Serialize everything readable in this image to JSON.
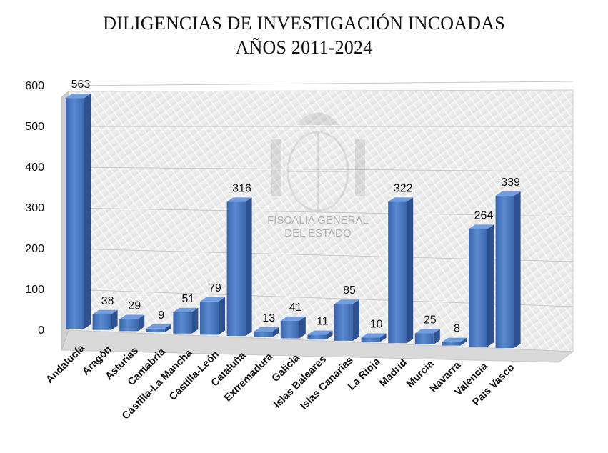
{
  "chart_data": {
    "type": "bar",
    "title": "DILIGENCIAS DE INVESTIGACIÓN INCOADAS",
    "subtitle": "AÑOS 2011-2024",
    "xlabel": "",
    "ylabel": "",
    "ylim": [
      0,
      600
    ],
    "yticks": [
      "0",
      "100",
      "200",
      "300",
      "400",
      "500",
      "600"
    ],
    "grid": true,
    "legend": "none",
    "three_d": true,
    "bar_color": "#4a78c0",
    "categories": [
      "Andalucía",
      "Aragón",
      "Asturias",
      "Cantabria",
      "Castilla-La Mancha",
      "Castilla-León",
      "Cataluña",
      "Extremadura",
      "Galicia",
      "Islas Baleares",
      "Islas Canarias",
      "La Rioja",
      "Madrid",
      "Murcia",
      "Navarra",
      "Valencia",
      "País Vasco"
    ],
    "values": [
      563,
      38,
      29,
      9,
      51,
      79,
      316,
      13,
      41,
      11,
      85,
      10,
      322,
      25,
      8,
      264,
      339
    ],
    "data_labels": [
      "563",
      "38",
      "29",
      "9",
      "51",
      "79",
      "316",
      "13",
      "41",
      "11",
      "85",
      "10",
      "322",
      "25",
      "8",
      "264",
      "339"
    ]
  },
  "watermark": {
    "text_line1": "FISCALIA GENERAL",
    "text_line2": "DEL ESTADO"
  }
}
